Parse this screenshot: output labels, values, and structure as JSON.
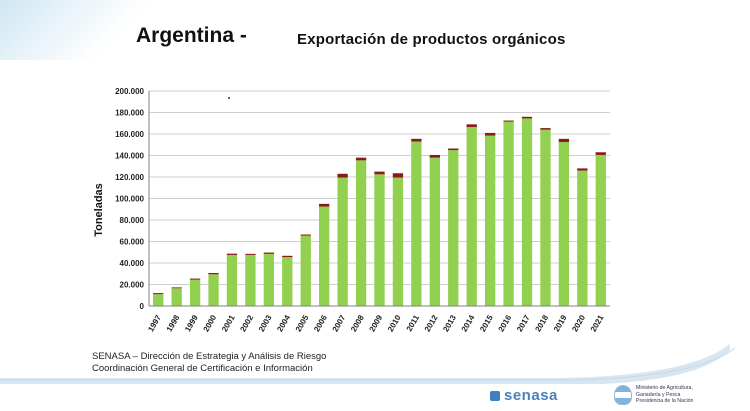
{
  "header": {
    "title": "Argentina -",
    "subtitle": "Exportación de productos orgánicos"
  },
  "source": {
    "line1": "SENASA – Dirección de Estrategia y Análisis de Riesgo",
    "line2": "Coordinación General de Certificación e Información"
  },
  "footer": {
    "logo_text": "senasa",
    "ministry_line1": "Ministerio de Agricultura,",
    "ministry_line2": "Ganadería y Pesca",
    "ministry_line3": "Presidencia de la Nación"
  },
  "colors": {
    "bar_main": "#92d050",
    "bar_top": "#8b1a1a",
    "grid": "#bfbfbf",
    "accent": "#3f7fc1"
  },
  "chart_data": {
    "type": "bar",
    "stacked": true,
    "ylabel": "Toneladas",
    "xlabel": "",
    "ylim": [
      0,
      200000
    ],
    "yticks": [
      "200.000",
      "180.000",
      "160.000",
      "140.000",
      "120.000",
      "100.000",
      "80.000",
      "60.000",
      "40.000",
      "20.000",
      "0"
    ],
    "ytick_values": [
      200000,
      180000,
      160000,
      140000,
      120000,
      100000,
      80000,
      60000,
      40000,
      20000,
      0
    ],
    "grid": true,
    "categories": [
      "1997",
      "1998",
      "1999",
      "2000",
      "2001",
      "2002",
      "2003",
      "2004",
      "2005",
      "2006",
      "2007",
      "2008",
      "2009",
      "2010",
      "2011",
      "2012",
      "2013",
      "2014",
      "2015",
      "2016",
      "2017",
      "2018",
      "2019",
      "2020",
      "2021"
    ],
    "series": [
      {
        "values": [
          11000,
          16500,
          24500,
          29500,
          47500,
          47500,
          48500,
          45500,
          65500,
          92500,
          119500,
          135500,
          122500,
          119500,
          153000,
          138000,
          145000,
          166500,
          158500,
          171500,
          174500,
          164000,
          152500,
          126000,
          140500
        ]
      },
      {
        "values": [
          1000,
          800,
          1000,
          1200,
          1200,
          1000,
          1200,
          1200,
          1000,
          2500,
          3500,
          2500,
          2500,
          4000,
          2500,
          2500,
          1500,
          2500,
          2500,
          1000,
          1500,
          1500,
          3000,
          2000,
          2500
        ]
      }
    ]
  }
}
